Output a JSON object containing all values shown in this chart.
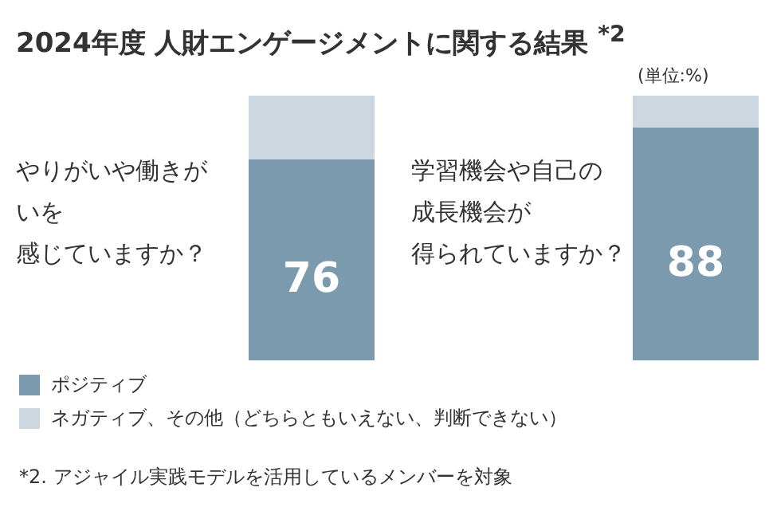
{
  "chart_data": {
    "type": "bar",
    "stacked": true,
    "title": "2024年度 人財エンゲージメントに関する結果 $^{*2}$",
    "subtitle": "(単位:%)",
    "categories": [
      "やりがいや働きがいを感じていますか？",
      "学習機会や自己の成長機会が得られていますか？"
    ],
    "ylim": [
      0,
      100
    ],
    "series": [
      {
        "name": "ポジティブ",
        "color": "#7b9aae",
        "values": [
          76,
          88
        ],
        "value_labels": [
          "76",
          "88"
        ]
      },
      {
        "name": "ネガティブ、その他（どちらともいえない、判断できない）",
        "color": "#cdd7df",
        "values": [
          24,
          12
        ]
      }
    ],
    "legend": "bottom",
    "annotations": [
      "*2. アジャイル実践モデルを活用しているメンバーを対象"
    ]
  }
}
